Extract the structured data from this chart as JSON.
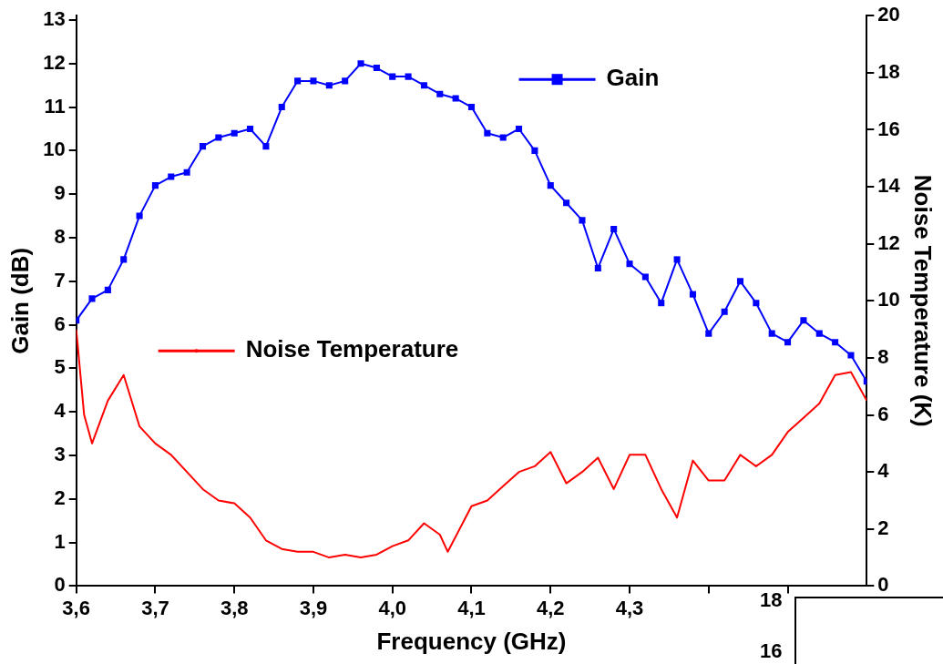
{
  "chart_data": [
    {
      "type": "line",
      "xlabel": "Frequency (GHz)",
      "ylabel": "Gain (dB)",
      "y2label": "Noise Temperature (K)",
      "legend": "top left",
      "grid": false,
      "xlim": [
        3.6,
        4.6
      ],
      "xticks": [
        {
          "value": 3.6,
          "label": "3,6"
        },
        {
          "value": 3.7,
          "label": "3,7"
        },
        {
          "value": 3.8,
          "label": "3,8"
        },
        {
          "value": 3.9,
          "label": "3,9"
        },
        {
          "value": 4.0,
          "label": "4,0"
        },
        {
          "value": 4.1,
          "label": "4,1"
        },
        {
          "value": 4.2,
          "label": "4,2"
        },
        {
          "value": 4.3,
          "label": "4,3"
        },
        {
          "value": 4.4,
          "label": null
        },
        {
          "value": 4.5,
          "label": null
        }
      ],
      "ylim": [
        0,
        13.1
      ],
      "yticks": [
        0,
        1,
        2,
        3,
        4,
        5,
        6,
        7,
        8,
        9,
        10,
        11,
        12,
        13
      ],
      "y2lim": [
        0,
        20
      ],
      "y2ticks": [
        0,
        2,
        4,
        6,
        8,
        10,
        12,
        14,
        16,
        18,
        20
      ],
      "series": [
        {
          "name": "Gain",
          "color": "#0000ff",
          "marker": "square",
          "x": [
            3.6,
            3.62,
            3.64,
            3.66,
            3.68,
            3.7,
            3.72,
            3.74,
            3.76,
            3.78,
            3.8,
            3.82,
            3.84,
            3.86,
            3.88,
            3.9,
            3.92,
            3.94,
            3.96,
            3.98,
            4.0,
            4.02,
            4.04,
            4.06,
            4.08,
            4.1,
            4.12,
            4.14,
            4.16,
            4.18,
            4.2,
            4.22,
            4.24,
            4.26,
            4.28,
            4.3,
            4.32,
            4.34,
            4.36,
            4.38,
            4.4,
            4.42,
            4.44,
            4.46,
            4.48,
            4.5,
            4.52,
            4.54,
            4.56,
            4.58,
            4.6
          ],
          "values": [
            6.1,
            6.6,
            6.8,
            7.5,
            8.5,
            9.2,
            9.4,
            9.5,
            10.1,
            10.3,
            10.4,
            10.5,
            10.1,
            11.0,
            11.6,
            11.6,
            11.5,
            11.6,
            12.0,
            11.9,
            11.7,
            11.7,
            11.5,
            11.3,
            11.2,
            11.0,
            10.4,
            10.3,
            10.5,
            10.0,
            9.2,
            8.8,
            8.4,
            7.3,
            8.2,
            7.4,
            7.1,
            6.5,
            7.5,
            6.7,
            5.8,
            6.3,
            7.0,
            6.5,
            5.8,
            5.6,
            6.1,
            5.8,
            5.6,
            5.3,
            4.7
          ]
        },
        {
          "name": "Noise Temperature",
          "color": "#ff0000",
          "marker": "none",
          "axis": "y2",
          "x": [
            3.6,
            3.61,
            3.62,
            3.64,
            3.66,
            3.68,
            3.7,
            3.72,
            3.74,
            3.76,
            3.78,
            3.8,
            3.82,
            3.84,
            3.86,
            3.88,
            3.9,
            3.92,
            3.94,
            3.96,
            3.98,
            4.0,
            4.02,
            4.04,
            4.06,
            4.07,
            4.1,
            4.12,
            4.14,
            4.16,
            4.18,
            4.2,
            4.22,
            4.24,
            4.26,
            4.28,
            4.3,
            4.32,
            4.34,
            4.36,
            4.38,
            4.4,
            4.42,
            4.44,
            4.46,
            4.48,
            4.5,
            4.52,
            4.54,
            4.56,
            4.58,
            4.6
          ],
          "values": [
            9.0,
            6.0,
            5.0,
            6.5,
            7.4,
            5.6,
            5.0,
            4.6,
            4.0,
            3.4,
            3.0,
            2.9,
            2.4,
            1.6,
            1.3,
            1.2,
            1.2,
            1.0,
            1.1,
            1.0,
            1.1,
            1.4,
            1.6,
            2.2,
            1.8,
            1.2,
            2.8,
            3.0,
            3.5,
            4.0,
            4.2,
            4.7,
            3.6,
            4.0,
            4.5,
            3.4,
            4.6,
            4.6,
            3.4,
            2.4,
            4.4,
            3.7,
            3.7,
            4.6,
            4.2,
            4.6,
            5.4,
            5.9,
            6.4,
            7.4,
            7.5,
            6.5
          ]
        }
      ]
    },
    {
      "type": "other",
      "annotations": [
        "18",
        "16"
      ]
    }
  ]
}
